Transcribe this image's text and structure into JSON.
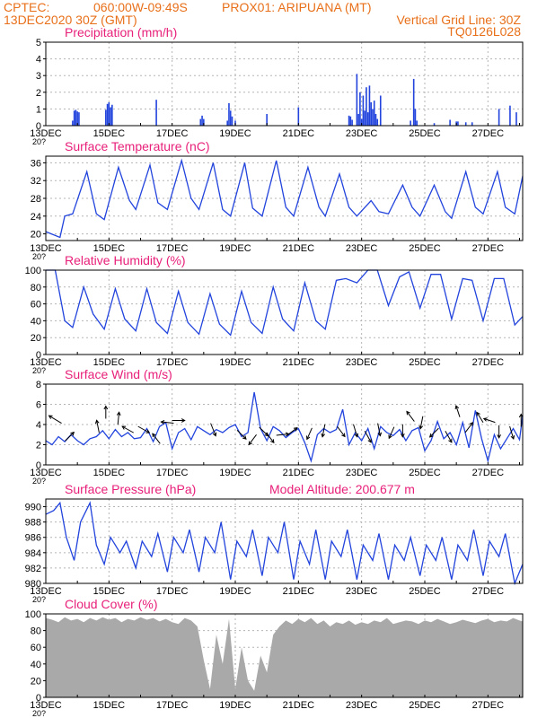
{
  "header": {
    "line1_left": "CPTEC:",
    "line1_coords": "060:00W-09:49S",
    "line1_location": "PROX01: ARIPUANA (MT)",
    "line2_left": "13DEC2020 30Z (GMT)",
    "line2_right": "Vertical Grid Line: 30Z",
    "line3_right": "TQ0126L028",
    "color": "#e8701a"
  },
  "title_color": "#e8207a",
  "line_color": "#2244dd",
  "cut_label": "20?",
  "chart_data": [
    {
      "id": "precip",
      "type": "bar",
      "title": "Precipitation (mm/h)",
      "ylim": [
        0,
        5
      ],
      "yticks": [
        "0",
        "1",
        "2",
        "3",
        "4",
        "5"
      ],
      "xticks": [
        "13DEC",
        "15DEC",
        "17DEC",
        "19DEC",
        "21DEC",
        "23DEC",
        "25DEC",
        "27DEC"
      ],
      "grid": true,
      "bars": [
        {
          "day": 0.85,
          "value": 0.3
        },
        {
          "day": 0.9,
          "value": 0.9
        },
        {
          "day": 0.95,
          "value": 0.95
        },
        {
          "day": 1.0,
          "value": 0.85
        },
        {
          "day": 1.05,
          "value": 0.8
        },
        {
          "day": 1.9,
          "value": 0.95
        },
        {
          "day": 1.95,
          "value": 1.3
        },
        {
          "day": 2.0,
          "value": 1.4
        },
        {
          "day": 2.05,
          "value": 1.1
        },
        {
          "day": 2.1,
          "value": 1.25
        },
        {
          "day": 3.5,
          "value": 1.55
        },
        {
          "day": 4.9,
          "value": 0.4
        },
        {
          "day": 4.95,
          "value": 0.6
        },
        {
          "day": 5.0,
          "value": 0.4
        },
        {
          "day": 5.75,
          "value": 0.3
        },
        {
          "day": 5.8,
          "value": 1.35
        },
        {
          "day": 5.85,
          "value": 0.9
        },
        {
          "day": 5.9,
          "value": 0.55
        },
        {
          "day": 6.0,
          "value": 0.3
        },
        {
          "day": 7.0,
          "value": 0.7
        },
        {
          "day": 8.0,
          "value": 1.1
        },
        {
          "day": 9.6,
          "value": 0.6
        },
        {
          "day": 9.65,
          "value": 0.55
        },
        {
          "day": 9.7,
          "value": 0.35
        },
        {
          "day": 9.85,
          "value": 3.1
        },
        {
          "day": 9.9,
          "value": 0.7
        },
        {
          "day": 9.95,
          "value": 2.0
        },
        {
          "day": 10.0,
          "value": 0.4
        },
        {
          "day": 10.05,
          "value": 1.8
        },
        {
          "day": 10.1,
          "value": 0.9
        },
        {
          "day": 10.15,
          "value": 2.3
        },
        {
          "day": 10.2,
          "value": 0.8
        },
        {
          "day": 10.25,
          "value": 2.4
        },
        {
          "day": 10.3,
          "value": 1.4
        },
        {
          "day": 10.35,
          "value": 1.0
        },
        {
          "day": 10.4,
          "value": 1.5
        },
        {
          "day": 10.45,
          "value": 0.7
        },
        {
          "day": 10.5,
          "value": 0.4
        },
        {
          "day": 10.6,
          "value": 1.8
        },
        {
          "day": 11.55,
          "value": 0.3
        },
        {
          "day": 11.65,
          "value": 2.8
        },
        {
          "day": 11.7,
          "value": 1.0
        },
        {
          "day": 11.75,
          "value": 0.3
        },
        {
          "day": 12.3,
          "value": 0.15
        },
        {
          "day": 12.8,
          "value": 0.35
        },
        {
          "day": 13.0,
          "value": 0.25
        },
        {
          "day": 13.05,
          "value": 0.25
        },
        {
          "day": 13.3,
          "value": 0.2
        },
        {
          "day": 13.5,
          "value": 0.2
        },
        {
          "day": 14.35,
          "value": 1.0
        },
        {
          "day": 14.7,
          "value": 1.2
        },
        {
          "day": 14.9,
          "value": 0.8
        }
      ]
    },
    {
      "id": "temp",
      "type": "line",
      "title": "Surface Temperature (nC)",
      "ylim": [
        18.5,
        37.5
      ],
      "yticks": [
        "20",
        "24",
        "28",
        "32",
        "36"
      ],
      "ytick_values": [
        20,
        24,
        28,
        32,
        36
      ],
      "xticks": [
        "13DEC",
        "15DEC",
        "17DEC",
        "19DEC",
        "21DEC",
        "23DEC",
        "25DEC",
        "27DEC"
      ],
      "grid": true,
      "x": [
        0,
        0.45,
        0.6,
        0.85,
        1.3,
        1.6,
        1.85,
        2.3,
        2.65,
        2.85,
        3.3,
        3.55,
        3.85,
        4.3,
        4.6,
        4.85,
        5.3,
        5.6,
        5.85,
        6.3,
        6.55,
        6.85,
        7.3,
        7.6,
        7.85,
        8.3,
        8.65,
        8.85,
        9.3,
        9.6,
        9.85,
        10.3,
        10.55,
        10.85,
        11.3,
        11.6,
        11.85,
        12.3,
        12.65,
        12.85,
        13.3,
        13.6,
        13.85,
        14.3,
        14.55,
        14.85,
        15.1
      ],
      "y": [
        20.5,
        19.2,
        24,
        24.5,
        34,
        24.5,
        23.2,
        35,
        27.5,
        25.5,
        35.5,
        27,
        25.5,
        36.5,
        28,
        25.5,
        36,
        25.5,
        24,
        36,
        25.8,
        24,
        36.5,
        26,
        24,
        35,
        26,
        24,
        33.5,
        26,
        24,
        27.5,
        25,
        24.5,
        31,
        26,
        24,
        31,
        25,
        23.5,
        34,
        26,
        24.5,
        34,
        26,
        24.5,
        33
      ],
      "ylabel": ""
    },
    {
      "id": "rh",
      "type": "line",
      "title": "Relative Humidity (%)",
      "ylim": [
        0,
        100
      ],
      "yticks": [
        "0",
        "20",
        "40",
        "60",
        "80",
        "100"
      ],
      "ytick_values": [
        0,
        20,
        40,
        60,
        80,
        100
      ],
      "xticks": [
        "13DEC",
        "15DEC",
        "17DEC",
        "19DEC",
        "21DEC",
        "23DEC",
        "25DEC",
        "27DEC"
      ],
      "grid": true,
      "x": [
        0,
        0.3,
        0.6,
        0.85,
        1.2,
        1.5,
        1.85,
        2.2,
        2.5,
        2.85,
        3.2,
        3.5,
        3.85,
        4.2,
        4.5,
        4.85,
        5.2,
        5.5,
        5.85,
        6.2,
        6.5,
        6.85,
        7.2,
        7.5,
        7.85,
        8.2,
        8.55,
        8.85,
        9.2,
        9.5,
        9.85,
        10.2,
        10.5,
        10.85,
        11.2,
        11.5,
        11.85,
        12.2,
        12.5,
        12.85,
        13.2,
        13.5,
        13.85,
        14.2,
        14.5,
        14.85,
        15.1
      ],
      "y": [
        100,
        100,
        40,
        32,
        80,
        48,
        30,
        78,
        42,
        28,
        78,
        38,
        25,
        75,
        38,
        24,
        72,
        36,
        23,
        75,
        38,
        25,
        80,
        42,
        28,
        85,
        40,
        30,
        88,
        90,
        85,
        100,
        100,
        58,
        92,
        98,
        55,
        95,
        95,
        42,
        90,
        88,
        40,
        90,
        90,
        35,
        45
      ],
      "ylabel": ""
    },
    {
      "id": "wind",
      "type": "line",
      "title": "Surface Wind (m/s)",
      "ylim": [
        0,
        8
      ],
      "yticks": [
        "0",
        "2",
        "4",
        "6",
        "8"
      ],
      "ytick_values": [
        0,
        2,
        4,
        6,
        8
      ],
      "xticks": [
        "13DEC",
        "15DEC",
        "17DEC",
        "19DEC",
        "21DEC",
        "23DEC",
        "25DEC",
        "27DEC"
      ],
      "grid": true,
      "x": [
        0,
        0.2,
        0.4,
        0.6,
        0.8,
        1.0,
        1.2,
        1.4,
        1.6,
        1.8,
        2.0,
        2.2,
        2.4,
        2.6,
        2.8,
        3.0,
        3.2,
        3.4,
        3.6,
        3.8,
        4.0,
        4.2,
        4.4,
        4.6,
        4.8,
        5.0,
        5.2,
        5.4,
        5.6,
        5.8,
        6.0,
        6.2,
        6.4,
        6.6,
        6.8,
        7.0,
        7.2,
        7.4,
        7.6,
        7.8,
        8.0,
        8.2,
        8.4,
        8.6,
        8.8,
        9.0,
        9.2,
        9.4,
        9.6,
        9.8,
        10.0,
        10.2,
        10.4,
        10.6,
        10.8,
        11.0,
        11.2,
        11.4,
        11.6,
        11.8,
        12.0,
        12.2,
        12.4,
        12.6,
        12.8,
        13.0,
        13.2,
        13.4,
        13.6,
        13.8,
        14.0,
        14.2,
        14.4,
        14.6,
        14.8,
        15.0,
        15.1
      ],
      "y": [
        2.4,
        2.0,
        2.8,
        2.3,
        3.0,
        2.4,
        2.0,
        2.6,
        2.8,
        3.4,
        2.6,
        3.5,
        2.8,
        3.2,
        2.6,
        2.7,
        3.6,
        2.3,
        3.8,
        4.2,
        1.6,
        3.2,
        3.6,
        2.5,
        3.8,
        3.4,
        3.0,
        3.5,
        3.2,
        3.7,
        4.0,
        2.8,
        3.2,
        7.2,
        3.6,
        2.4,
        3.8,
        3.4,
        2.7,
        3.2,
        3.6,
        2.2,
        0.4,
        3.0,
        3.6,
        3.2,
        3.5,
        5.5,
        2.0,
        3.2,
        2.4,
        3.6,
        1.6,
        3.8,
        3.2,
        2.9,
        3.5,
        2.4,
        3.4,
        3.7,
        1.4,
        2.4,
        4.3,
        2.6,
        3.2,
        2.0,
        4.2,
        1.7,
        5.4,
        2.6,
        0.4,
        3.0,
        1.6,
        2.6,
        3.6,
        2.5,
        4.9
      ],
      "arrows": [
        {
          "day": 0.3,
          "value": 4.5,
          "dx": -1,
          "dy": 0.6
        },
        {
          "day": 0.75,
          "value": 2.8,
          "dx": 0.7,
          "dy": 0.7
        },
        {
          "day": 1.65,
          "value": 3.8,
          "dx": -0.2,
          "dy": 1
        },
        {
          "day": 1.9,
          "value": 5.2,
          "dx": 0,
          "dy": 1
        },
        {
          "day": 2.3,
          "value": 4.6,
          "dx": 0.1,
          "dy": 1
        },
        {
          "day": 2.6,
          "value": 3.5,
          "dx": -0.9,
          "dy": 0.5
        },
        {
          "day": 3.1,
          "value": 3.5,
          "dx": 0.9,
          "dy": -0.5
        },
        {
          "day": 3.5,
          "value": 2.6,
          "dx": -0.6,
          "dy": 0.8
        },
        {
          "day": 3.85,
          "value": 4.2,
          "dx": -1,
          "dy": 0.1
        },
        {
          "day": 4.2,
          "value": 4.4,
          "dx": 1,
          "dy": 0
        },
        {
          "day": 5.3,
          "value": 3.5,
          "dx": 0.4,
          "dy": -1
        },
        {
          "day": 6.2,
          "value": 3.0,
          "dx": 0.7,
          "dy": -0.7
        },
        {
          "day": 6.55,
          "value": 2.5,
          "dx": -0.6,
          "dy": -0.8
        },
        {
          "day": 6.9,
          "value": 3.3,
          "dx": 0.7,
          "dy": -0.7
        },
        {
          "day": 7.1,
          "value": 2.7,
          "dx": 0.6,
          "dy": -0.8
        },
        {
          "day": 7.5,
          "value": 3.0,
          "dx": 1,
          "dy": 0.1
        },
        {
          "day": 7.8,
          "value": 3.3,
          "dx": 0.8,
          "dy": 0.6
        },
        {
          "day": 8.35,
          "value": 3.1,
          "dx": -0.4,
          "dy": -0.9
        },
        {
          "day": 8.8,
          "value": 3.4,
          "dx": -0.2,
          "dy": -1
        },
        {
          "day": 9.35,
          "value": 3.3,
          "dx": 0.6,
          "dy": -0.8
        },
        {
          "day": 9.8,
          "value": 3.4,
          "dx": 0.3,
          "dy": -1
        },
        {
          "day": 10.2,
          "value": 2.8,
          "dx": 0.5,
          "dy": -0.9
        },
        {
          "day": 10.55,
          "value": 3.5,
          "dx": 0.2,
          "dy": -1
        },
        {
          "day": 10.95,
          "value": 3.2,
          "dx": -0.4,
          "dy": -0.9
        },
        {
          "day": 11.3,
          "value": 3.4,
          "dx": 0,
          "dy": -1
        },
        {
          "day": 11.55,
          "value": 4.8,
          "dx": -0.6,
          "dy": 0.8
        },
        {
          "day": 11.9,
          "value": 4.2,
          "dx": -0.2,
          "dy": -1
        },
        {
          "day": 12.3,
          "value": 3.2,
          "dx": -0.7,
          "dy": -0.7
        },
        {
          "day": 12.75,
          "value": 2.8,
          "dx": 0.5,
          "dy": -0.9
        },
        {
          "day": 13.05,
          "value": 5.3,
          "dx": -0.3,
          "dy": 0.9
        },
        {
          "day": 13.4,
          "value": 3.7,
          "dx": 0.6,
          "dy": 0.8
        },
        {
          "day": 13.75,
          "value": 4.7,
          "dx": -0.5,
          "dy": 0.8
        },
        {
          "day": 14.05,
          "value": 4.4,
          "dx": -0.9,
          "dy": 0.3
        },
        {
          "day": 14.35,
          "value": 3.3,
          "dx": 0,
          "dy": -1
        },
        {
          "day": 14.75,
          "value": 3.2,
          "dx": 0.3,
          "dy": -1
        },
        {
          "day": 15.05,
          "value": 4.4,
          "dx": 0,
          "dy": 1
        }
      ],
      "ylabel": ""
    },
    {
      "id": "pres",
      "type": "line",
      "title": "Surface Pressure (hPa)",
      "subtitle": "Model Altitude: 200.677 m",
      "ylim": [
        980,
        991
      ],
      "yticks": [
        "980",
        "982",
        "984",
        "986",
        "988",
        "990"
      ],
      "ytick_values": [
        980,
        982,
        984,
        986,
        988,
        990
      ],
      "xticks": [
        "13DEC",
        "15DEC",
        "17DEC",
        "19DEC",
        "21DEC",
        "23DEC",
        "25DEC",
        "27DEC"
      ],
      "grid": true,
      "x": [
        0,
        0.25,
        0.45,
        0.65,
        0.9,
        1.1,
        1.4,
        1.6,
        1.85,
        2.05,
        2.35,
        2.55,
        2.85,
        3.05,
        3.35,
        3.55,
        3.85,
        4.05,
        4.35,
        4.55,
        4.85,
        5.05,
        5.35,
        5.55,
        5.85,
        6.05,
        6.35,
        6.55,
        6.85,
        7.05,
        7.35,
        7.55,
        7.85,
        8.05,
        8.35,
        8.55,
        8.85,
        9.05,
        9.35,
        9.55,
        9.85,
        10.05,
        10.35,
        10.55,
        10.85,
        11.05,
        11.35,
        11.55,
        11.85,
        12.05,
        12.35,
        12.55,
        12.85,
        13.05,
        13.35,
        13.55,
        13.85,
        14.05,
        14.35,
        14.55,
        14.85,
        15.1
      ],
      "y": [
        989,
        989.5,
        990.5,
        986,
        983,
        988,
        990.5,
        985,
        982.5,
        986,
        984,
        985.5,
        982,
        985.5,
        983.5,
        986.5,
        981.5,
        986,
        984,
        987,
        981.5,
        986,
        984,
        988,
        980.5,
        985.5,
        983.5,
        987,
        981,
        986,
        984,
        988,
        980.5,
        985.5,
        982.5,
        987,
        980.5,
        985.5,
        983.5,
        987,
        980.5,
        985,
        983,
        986.5,
        980.5,
        985,
        983,
        986,
        981,
        985,
        983,
        986,
        980.5,
        985,
        983,
        987,
        981,
        985.5,
        983.5,
        986.5,
        980,
        982.5
      ],
      "ylabel": ""
    },
    {
      "id": "cloud",
      "type": "area",
      "title": "Cloud Cover (%)",
      "ylim": [
        0,
        100
      ],
      "yticks": [
        "0",
        "20",
        "40",
        "60",
        "80",
        "100"
      ],
      "ytick_values": [
        0,
        20,
        40,
        60,
        80,
        100
      ],
      "xticks": [
        "13DEC",
        "15DEC",
        "17DEC",
        "19DEC",
        "21DEC",
        "23DEC",
        "25DEC",
        "27DEC"
      ],
      "grid": true,
      "color": "#a9a9a9",
      "x": [
        0,
        0.2,
        0.4,
        0.6,
        0.8,
        1.0,
        1.2,
        1.4,
        1.6,
        1.8,
        2.0,
        2.2,
        2.4,
        2.6,
        2.8,
        3.0,
        3.2,
        3.4,
        3.6,
        3.8,
        4.0,
        4.2,
        4.4,
        4.6,
        4.8,
        5.0,
        5.2,
        5.4,
        5.6,
        5.8,
        6.0,
        6.2,
        6.4,
        6.6,
        6.8,
        7.0,
        7.2,
        7.4,
        7.6,
        7.8,
        8.0,
        8.2,
        8.4,
        8.6,
        8.8,
        9.0,
        9.2,
        9.4,
        9.6,
        9.8,
        10.0,
        10.2,
        10.4,
        10.6,
        10.8,
        11.0,
        11.2,
        11.4,
        11.6,
        11.8,
        12.0,
        12.2,
        12.4,
        12.6,
        12.8,
        13.0,
        13.2,
        13.4,
        13.6,
        13.8,
        14.0,
        14.2,
        14.4,
        14.6,
        14.8,
        15.0,
        15.1
      ],
      "y": [
        95,
        93,
        90,
        96,
        92,
        94,
        90,
        95,
        92,
        96,
        93,
        95,
        90,
        94,
        92,
        96,
        93,
        95,
        91,
        94,
        90,
        88,
        95,
        92,
        85,
        45,
        10,
        75,
        40,
        94,
        10,
        60,
        20,
        8,
        50,
        30,
        75,
        85,
        92,
        88,
        94,
        90,
        95,
        88,
        92,
        85,
        90,
        88,
        92,
        87,
        90,
        88,
        92,
        90,
        95,
        88,
        90,
        92,
        91,
        88,
        92,
        90,
        94,
        91,
        88,
        90,
        93,
        91,
        89,
        92,
        94,
        90,
        92,
        91,
        95,
        92,
        91
      ],
      "ylabel": ""
    }
  ]
}
